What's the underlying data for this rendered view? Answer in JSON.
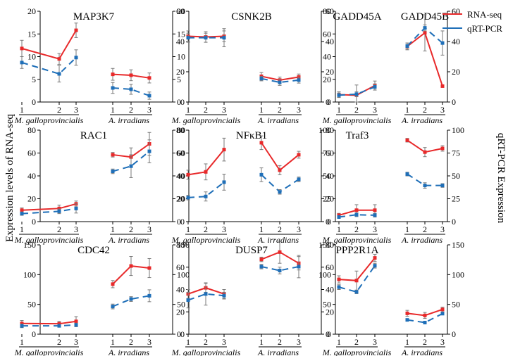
{
  "figure": {
    "left_ylabel": "Expression levels of RNA-seq",
    "right_ylabel": "qRT-PCR Expression"
  },
  "legend": [
    {
      "name": "RNA-seq",
      "color": "#e8292a"
    },
    {
      "name": "qRT-PCR",
      "color": "#1f6fb8"
    }
  ],
  "colors": {
    "rnaseq": "#e8292a",
    "qpcr": "#1f6fb8"
  },
  "groups": {
    "left": "M. galloprovincialis",
    "right": "A. irradians"
  },
  "chart_data": [
    {
      "type": "line",
      "title": "MAP3K7",
      "categories": [
        "1",
        "2",
        "3"
      ],
      "ylim_left": [
        0,
        20
      ],
      "yticks_left": [
        0,
        5,
        10,
        15,
        20
      ],
      "ylim_right": [
        0,
        20
      ],
      "yticks_right": [
        0,
        5,
        10,
        15,
        20
      ],
      "series": [
        {
          "name": "RNA-seq",
          "group": "M. galloprovincialis",
          "axis": "left",
          "values": [
            11.8,
            9.5,
            15.8
          ],
          "errors": [
            1.8,
            1.2,
            1.6
          ]
        },
        {
          "name": "qRT-PCR",
          "group": "M. galloprovincialis",
          "axis": "right",
          "values": [
            8.7,
            6.2,
            9.8
          ],
          "errors": [
            1.3,
            1.8,
            1.7
          ]
        },
        {
          "name": "RNA-seq",
          "group": "A. irradians",
          "axis": "left",
          "values": [
            6.1,
            5.9,
            5.3
          ],
          "errors": [
            1.3,
            1.2,
            1.1
          ]
        },
        {
          "name": "qRT-PCR",
          "group": "A. irradians",
          "axis": "right",
          "values": [
            3.1,
            2.8,
            1.4
          ],
          "errors": [
            1.2,
            1.1,
            0.8
          ]
        }
      ]
    },
    {
      "type": "line",
      "title": "CSNK2B",
      "categories": [
        "1",
        "2",
        "3"
      ],
      "ylim_left": [
        0,
        60
      ],
      "yticks_left": [
        0,
        20,
        40,
        60
      ],
      "ylim_right": [
        0,
        60
      ],
      "yticks_right": [
        0,
        20,
        40,
        60
      ],
      "series": [
        {
          "name": "RNA-seq",
          "group": "M. galloprovincialis",
          "axis": "left",
          "values": [
            43.5,
            43,
            43.5
          ],
          "errors": [
            3.5,
            3.5,
            3.5
          ]
        },
        {
          "name": "qRT-PCR",
          "group": "M. galloprovincialis",
          "axis": "right",
          "values": [
            42.5,
            42.5,
            42.5
          ],
          "errors": [
            3,
            3,
            6
          ]
        },
        {
          "name": "RNA-seq",
          "group": "A. irradians",
          "axis": "left",
          "values": [
            17,
            14.5,
            16.5
          ],
          "errors": [
            2.5,
            2,
            2
          ]
        },
        {
          "name": "qRT-PCR",
          "group": "A. irradians",
          "axis": "right",
          "values": [
            15.5,
            13,
            14.5
          ],
          "errors": [
            1.5,
            2,
            2
          ]
        }
      ]
    },
    {
      "type": "line",
      "title": "GADD45A / GADD45B",
      "categories": [
        "1",
        "2",
        "3"
      ],
      "ylim_left": [
        0,
        80
      ],
      "yticks_left": [
        0,
        20,
        40,
        60,
        80
      ],
      "ylim_right": [
        0,
        60
      ],
      "yticks_right": [
        0,
        20,
        40,
        60
      ],
      "series": [
        {
          "name": "RNA-seq",
          "gene": "GADD45A",
          "group": "M. galloprovincialis",
          "axis": "left",
          "values": [
            6.5,
            6,
            14.5
          ],
          "errors": [
            2.5,
            9,
            4
          ]
        },
        {
          "name": "qRT-PCR",
          "gene": "GADD45A",
          "group": "M. galloprovincialis",
          "axis": "right",
          "values": [
            4.5,
            5.2,
            10
          ],
          "errors": [
            1.5,
            1.5,
            2
          ]
        },
        {
          "name": "RNA-seq",
          "gene": "GADD45B",
          "group": "A. irradians",
          "axis": "left",
          "values": [
            49,
            61,
            14
          ],
          "errors": [
            3,
            16,
            0
          ]
        },
        {
          "name": "qRT-PCR",
          "gene": "GADD45B",
          "group": "A. irradians",
          "axis": "right",
          "values": [
            37,
            49,
            39
          ],
          "errors": [
            2,
            2,
            8
          ]
        }
      ]
    },
    {
      "type": "line",
      "title": "RAC1",
      "categories": [
        "1",
        "2",
        "3"
      ],
      "ylim_left": [
        0,
        80
      ],
      "yticks_left": [
        0,
        20,
        40,
        60,
        80
      ],
      "ylim_right": [
        0,
        80
      ],
      "yticks_right": [
        0,
        20,
        40,
        60,
        80
      ],
      "series": [
        {
          "name": "RNA-seq",
          "group": "M. galloprovincialis",
          "axis": "left",
          "values": [
            10,
            11.5,
            15.5
          ],
          "errors": [
            2,
            3,
            2.5
          ]
        },
        {
          "name": "qRT-PCR",
          "group": "M. galloprovincialis",
          "axis": "right",
          "values": [
            7,
            9,
            11.5
          ],
          "errors": [
            1.5,
            2,
            4
          ]
        },
        {
          "name": "RNA-seq",
          "group": "A. irradians",
          "axis": "left",
          "values": [
            58.5,
            56.5,
            68
          ],
          "errors": [
            2,
            8,
            10
          ]
        },
        {
          "name": "qRT-PCR",
          "group": "A. irradians",
          "axis": "right",
          "values": [
            44,
            48.5,
            61.5
          ],
          "errors": [
            2,
            10,
            10
          ]
        }
      ]
    },
    {
      "type": "line",
      "title": "NFκB1",
      "categories": [
        "1",
        "2",
        "3"
      ],
      "ylim_left": [
        0,
        80
      ],
      "yticks_left": [
        0,
        20,
        40,
        60,
        80
      ],
      "ylim_right": [
        0,
        80
      ],
      "yticks_right": [
        0,
        20,
        40,
        60,
        80
      ],
      "series": [
        {
          "name": "RNA-seq",
          "group": "M. galloprovincialis",
          "axis": "left",
          "values": [
            41,
            43.5,
            63
          ],
          "errors": [
            4,
            7,
            10
          ]
        },
        {
          "name": "qRT-PCR",
          "group": "M. galloprovincialis",
          "axis": "right",
          "values": [
            21,
            22,
            34.5
          ],
          "errors": [
            2,
            4,
            7
          ]
        },
        {
          "name": "RNA-seq",
          "group": "A. irradians",
          "axis": "left",
          "values": [
            69,
            45,
            58.5
          ],
          "errors": [
            6,
            4,
            3
          ]
        },
        {
          "name": "qRT-PCR",
          "group": "A. irradians",
          "axis": "right",
          "values": [
            41,
            26,
            37
          ],
          "errors": [
            6,
            2,
            2
          ]
        }
      ]
    },
    {
      "type": "line",
      "title": "Traf3",
      "categories": [
        "1",
        "2",
        "3"
      ],
      "ylim_left": [
        0,
        100
      ],
      "yticks_left": [
        0,
        25,
        50,
        75,
        100
      ],
      "ylim_right": [
        0,
        100
      ],
      "yticks_right": [
        0,
        25,
        50,
        75,
        100
      ],
      "series": [
        {
          "name": "RNA-seq",
          "group": "M. galloprovincialis",
          "axis": "left",
          "values": [
            7,
            12.5,
            12.5
          ],
          "errors": [
            2,
            6,
            6
          ]
        },
        {
          "name": "qRT-PCR",
          "group": "M. galloprovincialis",
          "axis": "right",
          "values": [
            5,
            7.5,
            7
          ],
          "errors": [
            1,
            2,
            2
          ]
        },
        {
          "name": "RNA-seq",
          "group": "A. irradians",
          "axis": "left",
          "values": [
            89,
            76,
            80
          ],
          "errors": [
            2,
            5,
            3
          ]
        },
        {
          "name": "qRT-PCR",
          "group": "A. irradians",
          "axis": "right",
          "values": [
            52,
            39.5,
            39.5
          ],
          "errors": [
            2,
            3,
            2
          ]
        }
      ]
    },
    {
      "type": "line",
      "title": "CDC42",
      "categories": [
        "1",
        "2",
        "3"
      ],
      "ylim_left": [
        0,
        150
      ],
      "yticks_left": [
        0,
        50,
        100,
        150
      ],
      "ylim_right": [
        0,
        150
      ],
      "yticks_right": [
        0,
        50,
        100,
        150
      ],
      "series": [
        {
          "name": "RNA-seq",
          "group": "M. galloprovincialis",
          "axis": "left",
          "values": [
            18,
            17.5,
            21.5
          ],
          "errors": [
            5,
            4,
            8
          ]
        },
        {
          "name": "qRT-PCR",
          "group": "M. galloprovincialis",
          "axis": "right",
          "values": [
            14,
            14,
            15.5
          ],
          "errors": [
            3,
            2,
            3
          ]
        },
        {
          "name": "RNA-seq",
          "group": "A. irradians",
          "axis": "left",
          "values": [
            84,
            114.5,
            111
          ],
          "errors": [
            6,
            16,
            16
          ]
        },
        {
          "name": "qRT-PCR",
          "group": "A. irradians",
          "axis": "right",
          "values": [
            46.5,
            59,
            64.5
          ],
          "errors": [
            4,
            4,
            10
          ]
        }
      ]
    },
    {
      "type": "line",
      "title": "DUSP7",
      "categories": [
        "1",
        "2",
        "3"
      ],
      "ylim_left": [
        0,
        80
      ],
      "yticks_left": [
        0,
        20,
        40,
        60,
        80
      ],
      "ylim_right": [
        0,
        80
      ],
      "yticks_right": [
        0,
        20,
        40,
        60,
        80
      ],
      "series": [
        {
          "name": "RNA-seq",
          "group": "M. galloprovincialis",
          "axis": "left",
          "values": [
            36,
            41.5,
            36
          ],
          "errors": [
            4,
            4,
            4
          ]
        },
        {
          "name": "qRT-PCR",
          "group": "M. galloprovincialis",
          "axis": "right",
          "values": [
            30.5,
            36,
            34.5
          ],
          "errors": [
            7,
            10,
            3
          ]
        },
        {
          "name": "RNA-seq",
          "group": "A. irradians",
          "axis": "left",
          "values": [
            67,
            73.5,
            63.5
          ],
          "errors": [
            2,
            10,
            6
          ]
        },
        {
          "name": "qRT-PCR",
          "group": "A. irradians",
          "axis": "right",
          "values": [
            60.5,
            57,
            60.5
          ],
          "errors": [
            2,
            3,
            10
          ]
        }
      ]
    },
    {
      "type": "line",
      "title": "PPP2R1A",
      "categories": [
        "1",
        "2",
        "3"
      ],
      "ylim_left": [
        0,
        150
      ],
      "yticks_left": [
        0,
        50,
        100,
        150
      ],
      "ylim_right": [
        0,
        150
      ],
      "yticks_right": [
        0,
        50,
        100,
        150
      ],
      "series": [
        {
          "name": "RNA-seq",
          "group": "M. galloprovincialis",
          "axis": "left",
          "values": [
            92,
            90,
            128
          ],
          "errors": [
            6,
            16,
            6
          ]
        },
        {
          "name": "qRT-PCR",
          "group": "M. galloprovincialis",
          "axis": "right",
          "values": [
            79,
            71,
            115
          ],
          "errors": [
            4,
            3,
            4
          ]
        },
        {
          "name": "RNA-seq",
          "group": "A. irradians",
          "axis": "left",
          "values": [
            35,
            31.5,
            41.5
          ],
          "errors": [
            5,
            5,
            4
          ]
        },
        {
          "name": "qRT-PCR",
          "group": "A. irradians",
          "axis": "right",
          "values": [
            24,
            19.5,
            34.5
          ],
          "errors": [
            2,
            2,
            2
          ]
        }
      ]
    }
  ]
}
